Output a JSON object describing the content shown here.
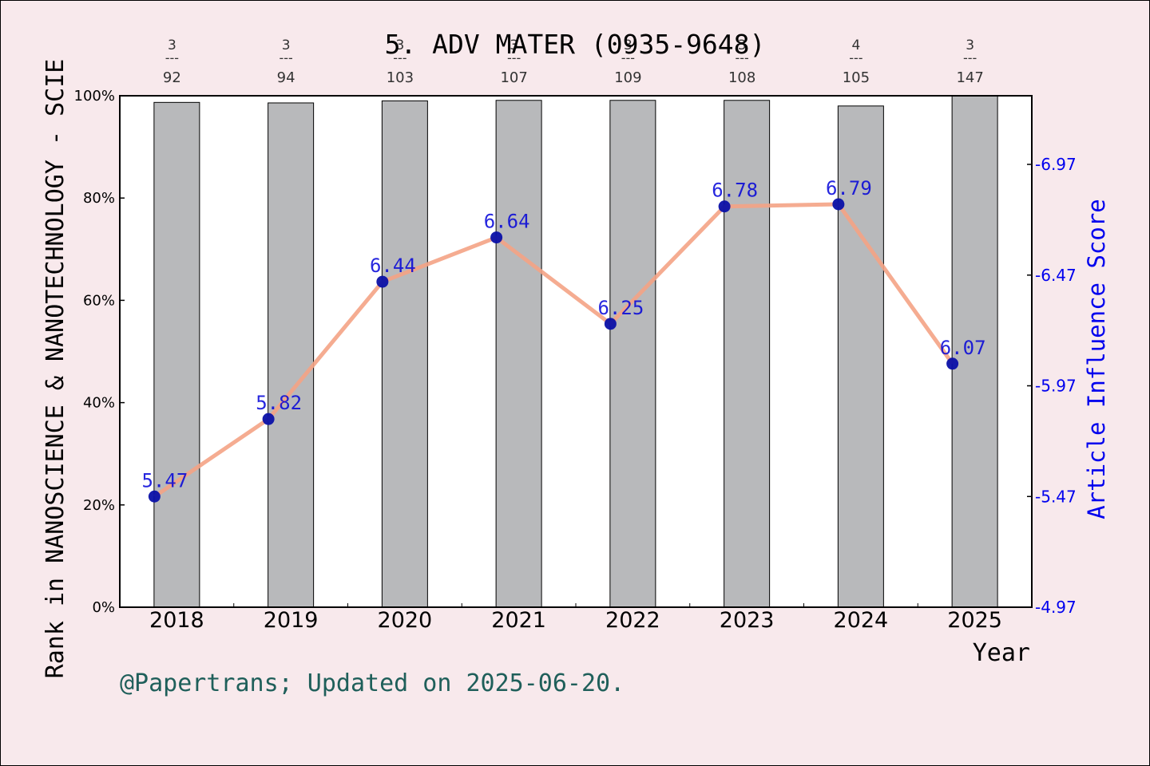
{
  "chart_data": {
    "type": "bar",
    "title": "5. ADV MATER (0935-9648)",
    "xlabel": "Year",
    "ylabel": "Rank in NANOSCIENCE & NANOTECHNOLOGY - SCIE",
    "y2label": "Article Influence Score",
    "footer": "@Papertrans; Updated on 2025-06-20.",
    "categories": [
      "2018",
      "2019",
      "2020",
      "2021",
      "2022",
      "2023",
      "2024",
      "2025"
    ],
    "ylim": [
      0,
      100
    ],
    "y_ticks": [
      "0%",
      "20%",
      "40%",
      "60%",
      "80%",
      "100%"
    ],
    "y2lim": [
      4.97,
      7.28
    ],
    "y2_ticks": [
      "4.97",
      "5.47",
      "5.97",
      "6.47",
      "6.97"
    ],
    "series": [
      {
        "kind": "bar",
        "values": [
          98.7,
          98.6,
          99.0,
          99.1,
          99.1,
          99.1,
          98.0,
          100.0
        ],
        "rank_labels": [
          {
            "rank": "3",
            "total": "92"
          },
          {
            "rank": "3",
            "total": "94"
          },
          {
            "rank": "3",
            "total": "103"
          },
          {
            "rank": "3",
            "total": "107"
          },
          {
            "rank": "3",
            "total": "109"
          },
          {
            "rank": "3",
            "total": "108"
          },
          {
            "rank": "4",
            "total": "105"
          },
          {
            "rank": "3",
            "total": "147"
          }
        ],
        "color": "#b8b9bb"
      },
      {
        "kind": "line",
        "axis": "right",
        "values": [
          5.47,
          5.82,
          6.44,
          6.64,
          6.25,
          6.78,
          6.79,
          6.07
        ],
        "labels": [
          "5.47",
          "5.82",
          "6.44",
          "6.64",
          "6.25",
          "6.78",
          "6.79",
          "6.07"
        ],
        "color": "#f4a385",
        "marker_color": "#0a10a8"
      }
    ],
    "grid": false,
    "colors": {
      "background": "#f8e9ec",
      "plot_background": "#ffffff",
      "right_axis": "#0000ee",
      "point_label": "#0000d8",
      "footer": "#1f5f5a"
    }
  }
}
